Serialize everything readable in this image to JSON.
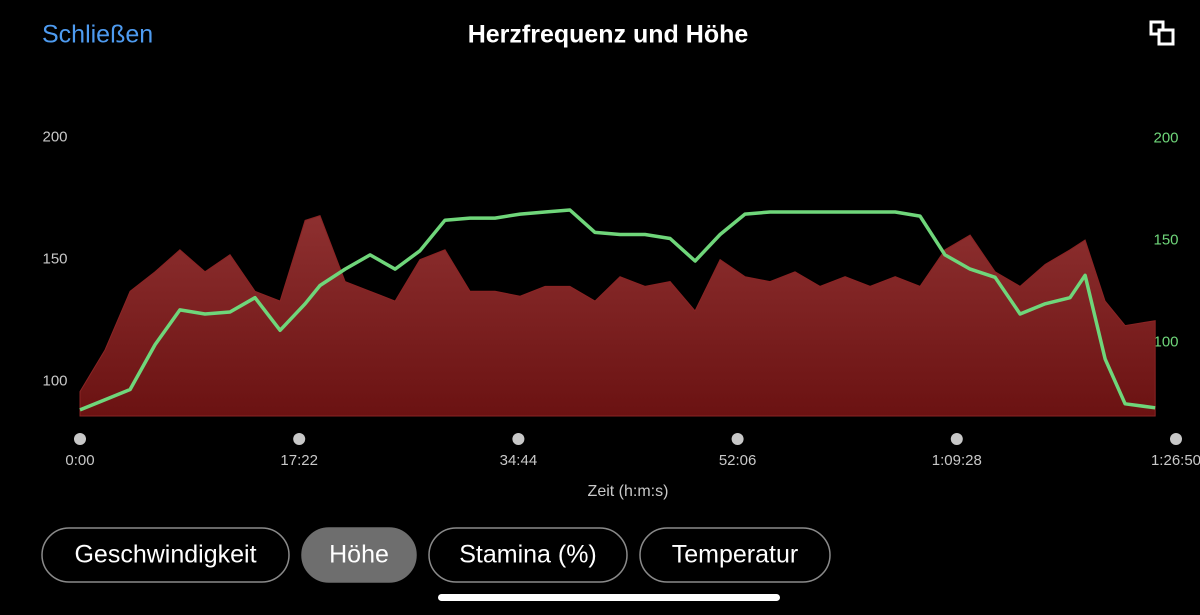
{
  "header": {
    "close": "Schließen",
    "title": "Herzfrequenz und Höhe"
  },
  "chart_data": {
    "type": "area-line",
    "x_label": "Zeit (h:m:s)",
    "x": [
      0,
      119,
      238,
      357,
      475,
      594,
      713,
      832,
      951,
      1070,
      1141,
      1260,
      1379,
      1498,
      1616,
      1735,
      1854,
      1973,
      2092,
      2211,
      2329,
      2448,
      2567,
      2686,
      2805,
      2924,
      3043,
      3161,
      3280,
      3399,
      3518,
      3637,
      3756,
      3875,
      3993,
      4112,
      4231,
      4350,
      4469,
      4588,
      4706,
      4778,
      4873,
      4968,
      5111
    ],
    "xlim": [
      0,
      5210
    ],
    "xticks": [
      {
        "value": 0,
        "label": "0:00"
      },
      {
        "value": 1042,
        "label": "17:22"
      },
      {
        "value": 2084,
        "label": "34:44"
      },
      {
        "value": 3126,
        "label": "52:06"
      },
      {
        "value": 4168,
        "label": "1:09:28"
      },
      {
        "value": 5210,
        "label": "1:26:50"
      }
    ],
    "ylim": [
      86,
      212
    ],
    "yticks": [
      100,
      150,
      200
    ],
    "y2lim": [
      64,
      215
    ],
    "y2ticks": [
      100,
      150,
      200
    ],
    "series": [
      {
        "color": "#8a2424",
        "values": [
          96,
          113,
          137,
          145,
          154,
          145,
          152,
          137,
          133,
          166,
          168,
          141,
          137,
          133,
          150,
          154,
          137,
          137,
          135,
          139,
          139,
          133,
          143,
          139,
          141,
          129,
          150,
          143,
          141,
          145,
          139,
          143,
          139,
          143,
          139,
          154,
          160,
          145,
          139,
          148,
          154,
          158,
          133,
          123,
          125
        ]
      },
      {
        "color": "#6fd67a",
        "axis": "y2",
        "values": [
          67,
          72,
          77,
          99,
          116,
          114,
          115,
          122,
          106,
          119,
          128,
          136,
          143,
          136,
          145,
          160,
          161,
          161,
          163,
          164,
          165,
          154,
          153,
          153,
          151,
          140,
          153,
          163,
          164,
          164,
          164,
          164,
          164,
          164,
          162,
          143,
          136,
          132,
          114,
          119,
          122,
          133,
          92,
          70,
          68
        ]
      }
    ]
  },
  "ui": {
    "buttons": [
      "Geschwindigkeit",
      "Höhe",
      "Stamina (%)",
      "Temperatur"
    ],
    "selected": 1
  }
}
